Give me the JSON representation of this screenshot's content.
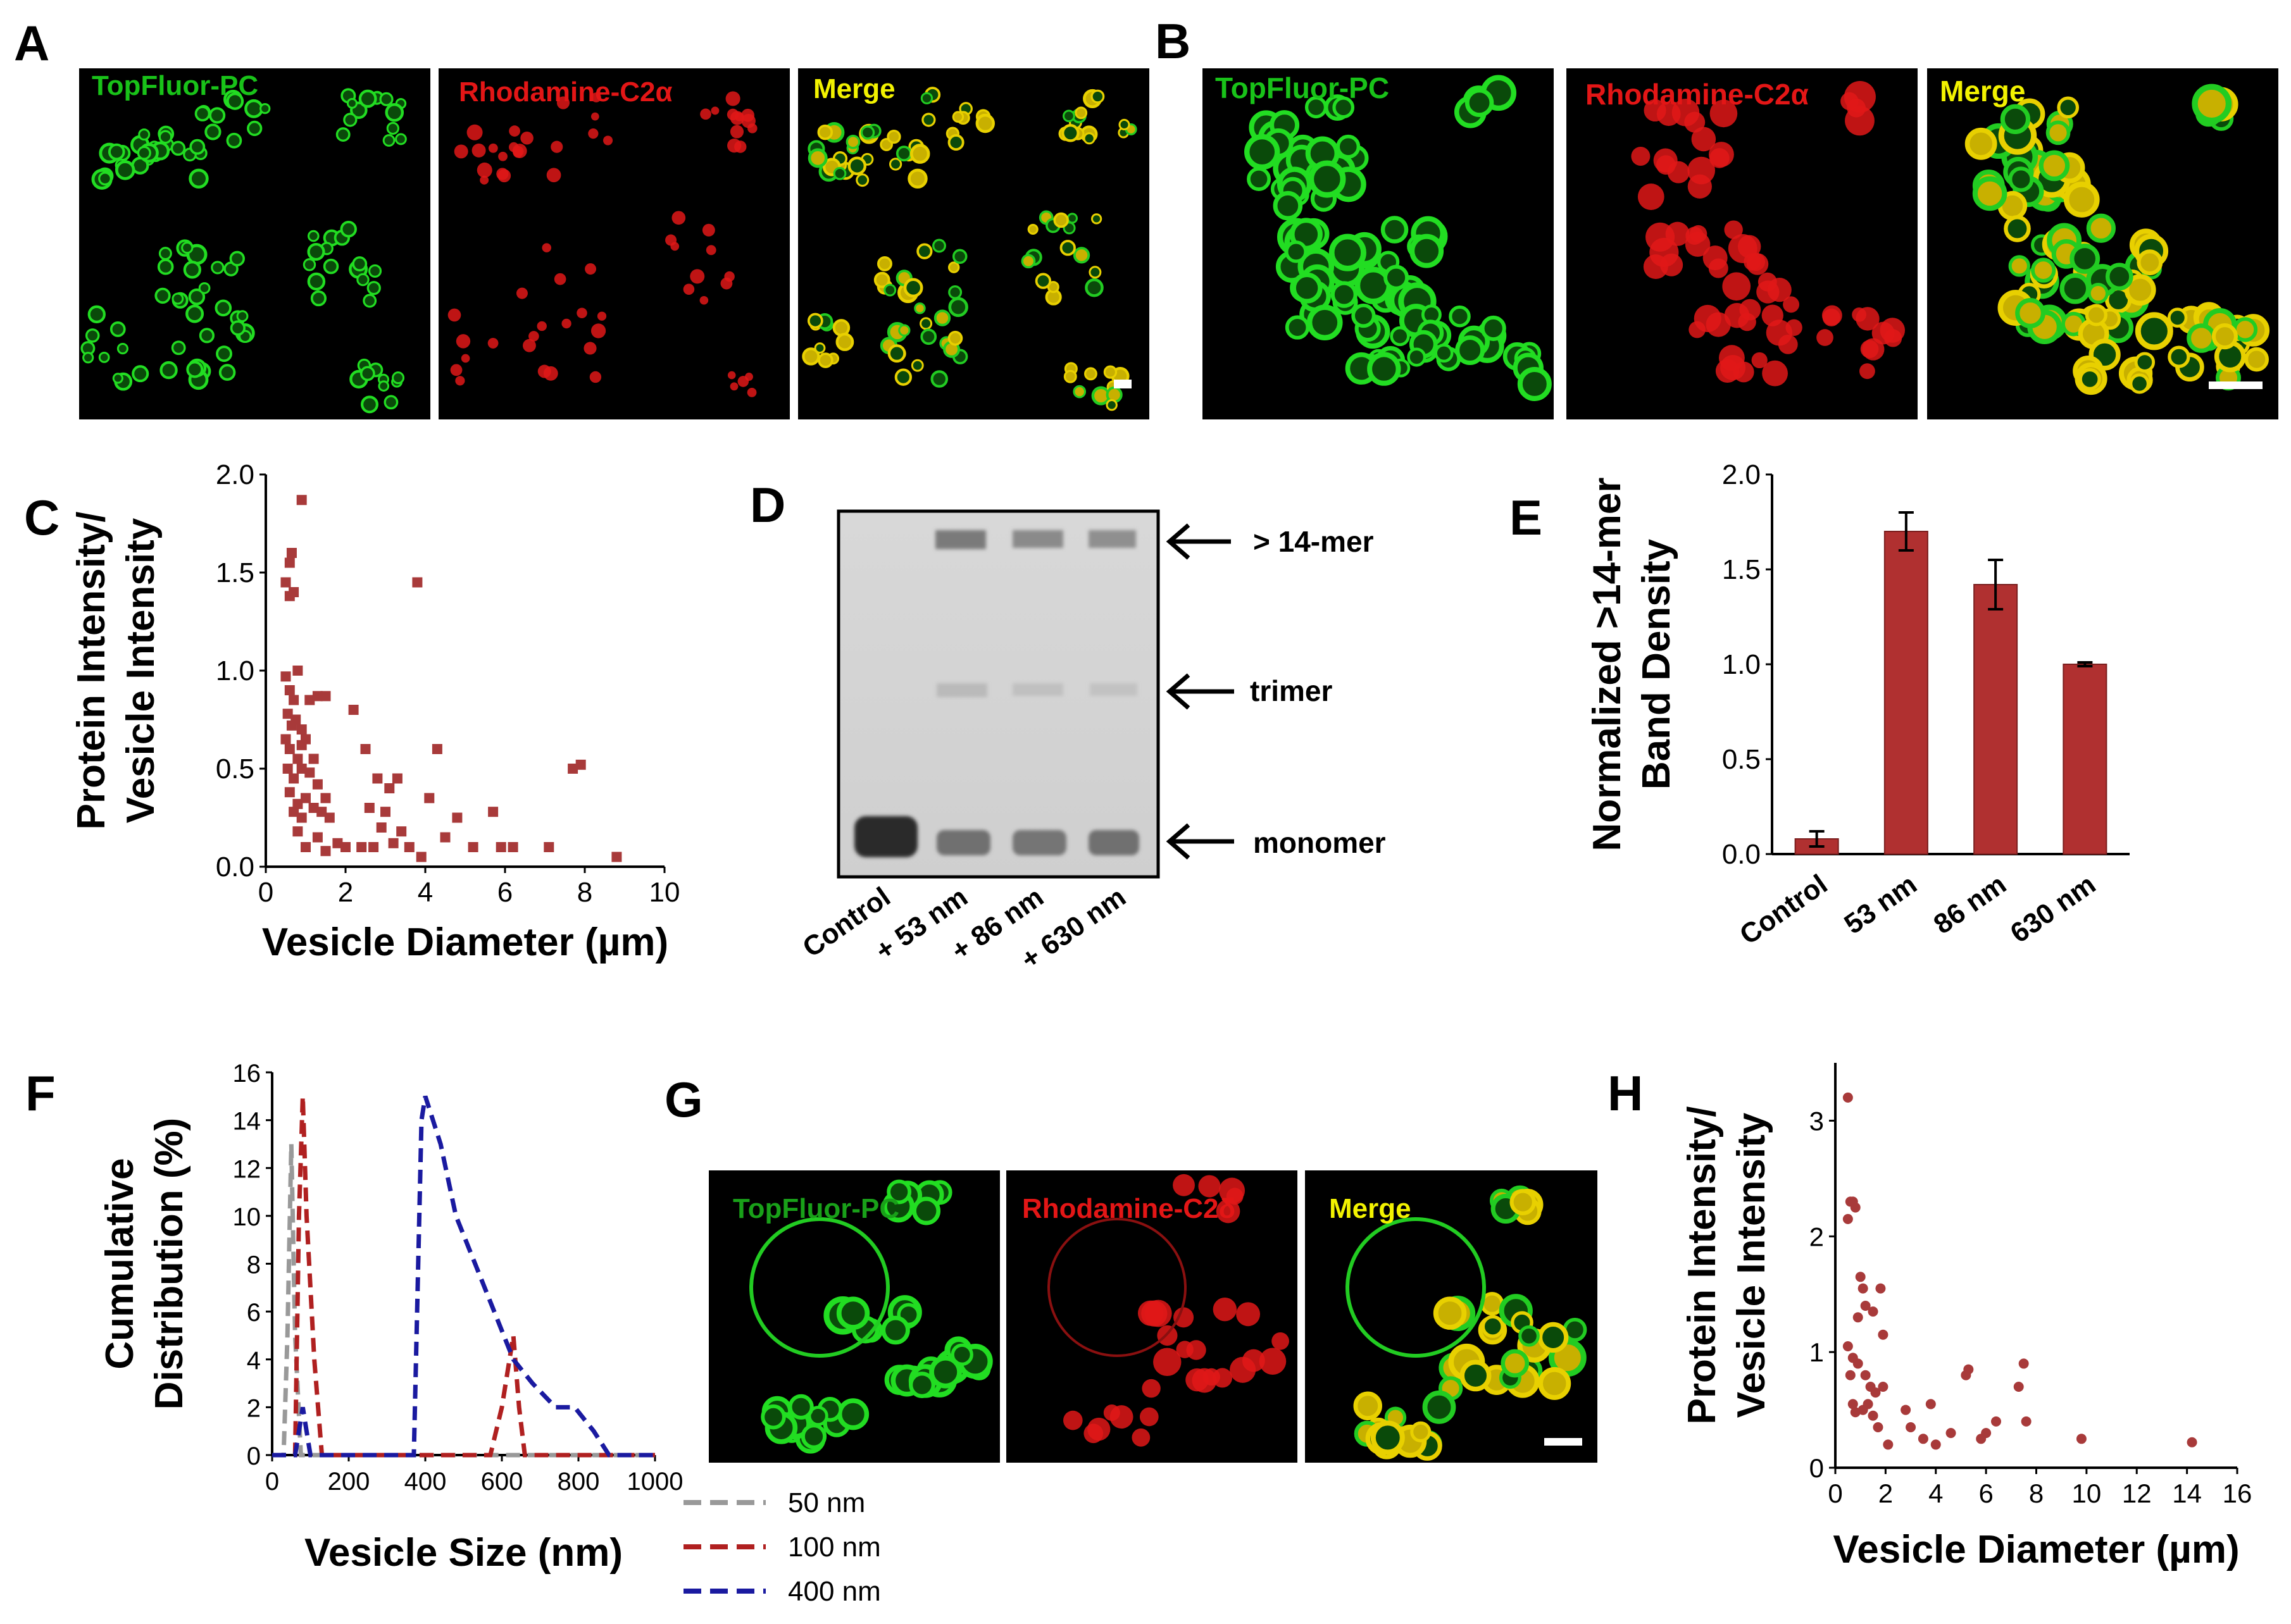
{
  "panels": {
    "A": {
      "letter": "A",
      "labels": [
        "TopFluor-PC",
        "Rhodamine-C2α",
        "Merge"
      ]
    },
    "B": {
      "letter": "B",
      "labels": [
        "TopFluor-PC",
        "Rhodamine-C2α",
        "Merge"
      ]
    },
    "C": {
      "letter": "C"
    },
    "D": {
      "letter": "D",
      "bands": [
        "> 14-mer",
        "trimer",
        "monomer"
      ],
      "lanes": [
        "Control",
        "+ 53 nm",
        "+ 86 nm",
        "+ 630 nm"
      ]
    },
    "E": {
      "letter": "E"
    },
    "F": {
      "letter": "F"
    },
    "G": {
      "letter": "G",
      "labels": [
        "TopFluor-PC",
        "Rhodamine-C2δ",
        "Merge"
      ]
    },
    "H": {
      "letter": "H"
    }
  },
  "colors": {
    "green": "#19d219",
    "red": "#e31616",
    "yellow": "#f2f200",
    "bar": "#b03030",
    "marker": "#a83a3a"
  },
  "chart_data": [
    {
      "id": "C",
      "type": "scatter",
      "xlabel": "Vesicle Diameter (µm)",
      "ylabel": [
        "Protein Intensity/",
        "Vesicle Intensity"
      ],
      "xlim": [
        0,
        10
      ],
      "ylim": [
        0,
        2.0
      ],
      "xticks": [
        "0",
        "2",
        "4",
        "6",
        "8",
        "10"
      ],
      "yticks": [
        "0.0",
        "0.5",
        "1.0",
        "1.5",
        "2.0"
      ],
      "marker": "square",
      "points": [
        [
          0.5,
          1.45
        ],
        [
          0.6,
          1.55
        ],
        [
          0.65,
          1.6
        ],
        [
          0.6,
          1.38
        ],
        [
          0.7,
          1.4
        ],
        [
          0.9,
          1.87
        ],
        [
          0.5,
          0.97
        ],
        [
          0.6,
          0.9
        ],
        [
          0.7,
          0.85
        ],
        [
          0.8,
          1.0
        ],
        [
          0.55,
          0.78
        ],
        [
          0.65,
          0.72
        ],
        [
          0.75,
          0.75
        ],
        [
          0.9,
          0.7
        ],
        [
          1.1,
          0.85
        ],
        [
          1.3,
          0.87
        ],
        [
          1.5,
          0.87
        ],
        [
          0.5,
          0.65
        ],
        [
          0.6,
          0.6
        ],
        [
          0.8,
          0.55
        ],
        [
          0.9,
          0.62
        ],
        [
          1.0,
          0.65
        ],
        [
          1.2,
          0.55
        ],
        [
          0.55,
          0.5
        ],
        [
          0.7,
          0.45
        ],
        [
          0.9,
          0.5
        ],
        [
          1.1,
          0.48
        ],
        [
          1.3,
          0.42
        ],
        [
          1.5,
          0.35
        ],
        [
          0.6,
          0.38
        ],
        [
          0.8,
          0.32
        ],
        [
          1.0,
          0.35
        ],
        [
          1.2,
          0.3
        ],
        [
          0.7,
          0.28
        ],
        [
          0.9,
          0.25
        ],
        [
          1.4,
          0.28
        ],
        [
          1.6,
          0.25
        ],
        [
          0.8,
          0.18
        ],
        [
          1.0,
          0.1
        ],
        [
          1.3,
          0.15
        ],
        [
          1.5,
          0.08
        ],
        [
          1.8,
          0.12
        ],
        [
          2.0,
          0.1
        ],
        [
          2.2,
          0.8
        ],
        [
          2.5,
          0.6
        ],
        [
          2.8,
          0.45
        ],
        [
          3.1,
          0.4
        ],
        [
          3.3,
          0.45
        ],
        [
          2.6,
          0.3
        ],
        [
          2.9,
          0.2
        ],
        [
          3.0,
          0.28
        ],
        [
          3.2,
          0.12
        ],
        [
          2.4,
          0.1
        ],
        [
          2.7,
          0.1
        ],
        [
          3.4,
          0.18
        ],
        [
          3.6,
          0.1
        ],
        [
          3.8,
          1.45
        ],
        [
          3.9,
          0.05
        ],
        [
          4.3,
          0.6
        ],
        [
          4.1,
          0.35
        ],
        [
          4.5,
          0.15
        ],
        [
          4.8,
          0.25
        ],
        [
          5.2,
          0.1
        ],
        [
          5.7,
          0.28
        ],
        [
          5.9,
          0.1
        ],
        [
          6.2,
          0.1
        ],
        [
          7.1,
          0.1
        ],
        [
          7.7,
          0.5
        ],
        [
          7.9,
          0.52
        ],
        [
          8.8,
          0.05
        ]
      ]
    },
    {
      "id": "E",
      "type": "bar",
      "ylabel": [
        "Normalized >14-mer",
        "Band Density"
      ],
      "categories": [
        "Control",
        "53 nm",
        "86 nm",
        "630 nm"
      ],
      "values": [
        0.08,
        1.7,
        1.42,
        1.0
      ],
      "errors": [
        0.04,
        0.1,
        0.13,
        0.01
      ],
      "ylim": [
        0,
        2.0
      ],
      "yticks": [
        "0.0",
        "0.5",
        "1.0",
        "1.5",
        "2.0"
      ]
    },
    {
      "id": "F",
      "type": "line",
      "xlabel": "Vesicle Size (nm)",
      "ylabel": [
        "Cumulative",
        "Distribution (%)"
      ],
      "xlim": [
        0,
        1000
      ],
      "ylim": [
        0,
        16
      ],
      "xticks": [
        "0",
        "200",
        "400",
        "600",
        "800",
        "1000"
      ],
      "yticks": [
        "0",
        "2",
        "4",
        "6",
        "8",
        "10",
        "12",
        "14",
        "16"
      ],
      "series": [
        {
          "name": "50 nm",
          "color": "#999999",
          "points": [
            [
              0,
              0
            ],
            [
              30,
              0
            ],
            [
              40,
              5
            ],
            [
              50,
              13
            ],
            [
              60,
              5
            ],
            [
              75,
              0
            ],
            [
              1000,
              0
            ]
          ]
        },
        {
          "name": "100 nm",
          "color": "#b02020",
          "points": [
            [
              0,
              0
            ],
            [
              60,
              0
            ],
            [
              70,
              10
            ],
            [
              80,
              15
            ],
            [
              90,
              10
            ],
            [
              110,
              4
            ],
            [
              130,
              0
            ],
            [
              570,
              0
            ],
            [
              600,
              2
            ],
            [
              620,
              4
            ],
            [
              630,
              5
            ],
            [
              645,
              2
            ],
            [
              660,
              0
            ],
            [
              1000,
              0
            ]
          ]
        },
        {
          "name": "400 nm",
          "color": "#1a1aa0",
          "points": [
            [
              0,
              0
            ],
            [
              60,
              0
            ],
            [
              70,
              1
            ],
            [
              80,
              2
            ],
            [
              90,
              1
            ],
            [
              100,
              0
            ],
            [
              370,
              0
            ],
            [
              390,
              14
            ],
            [
              400,
              15
            ],
            [
              420,
              14
            ],
            [
              440,
              13
            ],
            [
              480,
              10
            ],
            [
              530,
              8
            ],
            [
              580,
              6
            ],
            [
              630,
              4
            ],
            [
              680,
              3
            ],
            [
              740,
              2
            ],
            [
              790,
              2
            ],
            [
              840,
              1
            ],
            [
              880,
              0
            ],
            [
              1000,
              0
            ]
          ]
        }
      ]
    },
    {
      "id": "H",
      "type": "scatter",
      "xlabel": "Vesicle Diameter (µm)",
      "ylabel": [
        "Protein Intensity/",
        "Vesicle Intensity"
      ],
      "xlim": [
        0,
        16
      ],
      "ylim": [
        0,
        3.5
      ],
      "xticks": [
        "0",
        "2",
        "4",
        "6",
        "8",
        "10",
        "12",
        "14",
        "16"
      ],
      "yticks": [
        "0",
        "1",
        "2",
        "3"
      ],
      "marker": "circle",
      "points": [
        [
          0.5,
          3.2
        ],
        [
          0.6,
          2.3
        ],
        [
          0.7,
          2.3
        ],
        [
          0.5,
          2.15
        ],
        [
          0.8,
          2.25
        ],
        [
          1.0,
          1.65
        ],
        [
          1.1,
          1.55
        ],
        [
          0.9,
          1.3
        ],
        [
          1.2,
          1.4
        ],
        [
          1.5,
          1.35
        ],
        [
          1.8,
          1.55
        ],
        [
          1.9,
          1.15
        ],
        [
          0.5,
          1.05
        ],
        [
          0.7,
          0.95
        ],
        [
          0.6,
          0.8
        ],
        [
          0.9,
          0.9
        ],
        [
          1.2,
          0.8
        ],
        [
          1.4,
          0.7
        ],
        [
          1.6,
          0.65
        ],
        [
          1.9,
          0.7
        ],
        [
          0.7,
          0.55
        ],
        [
          0.8,
          0.48
        ],
        [
          1.1,
          0.5
        ],
        [
          1.3,
          0.55
        ],
        [
          1.5,
          0.45
        ],
        [
          1.7,
          0.35
        ],
        [
          2.1,
          0.2
        ],
        [
          2.8,
          0.5
        ],
        [
          3.0,
          0.35
        ],
        [
          3.5,
          0.25
        ],
        [
          3.8,
          0.55
        ],
        [
          4.0,
          0.2
        ],
        [
          4.6,
          0.3
        ],
        [
          5.2,
          0.8
        ],
        [
          5.3,
          0.85
        ],
        [
          5.8,
          0.25
        ],
        [
          6.0,
          0.3
        ],
        [
          6.4,
          0.4
        ],
        [
          7.3,
          0.7
        ],
        [
          7.5,
          0.9
        ],
        [
          7.6,
          0.4
        ],
        [
          9.8,
          0.25
        ],
        [
          14.2,
          0.22
        ]
      ]
    }
  ]
}
